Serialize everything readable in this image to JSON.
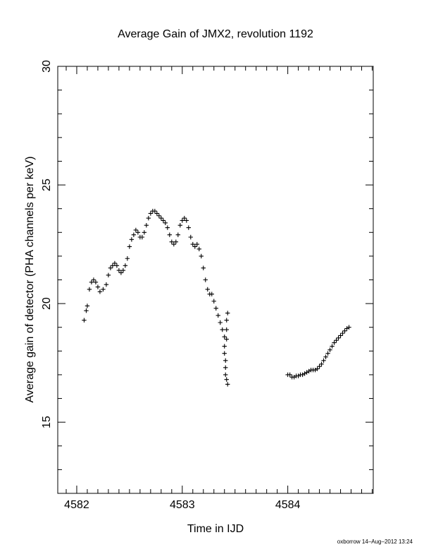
{
  "chart_data": {
    "type": "scatter",
    "title": "Average Gain of JMX2, revolution 1192",
    "xlabel": "Time in IJD",
    "ylabel": "Average gain of detector (PHA channels per keV)",
    "xlim": [
      4581.82,
      4584.81
    ],
    "ylim": [
      12,
      30
    ],
    "x_ticks": [
      4582,
      4583,
      4584
    ],
    "y_ticks": [
      15,
      20,
      25,
      30
    ],
    "grid": false,
    "marker": "plus",
    "footer": "oxborrow 14–Aug–2012 13:24",
    "series": [
      {
        "x": [
          4582.07,
          4582.09,
          4582.1,
          4582.12,
          4582.14,
          4582.16,
          4582.18,
          4582.2,
          4582.22,
          4582.25,
          4582.28,
          4582.3,
          4582.32,
          4582.34,
          4582.36,
          4582.38,
          4582.4,
          4582.42,
          4582.44,
          4582.46,
          4582.48,
          4582.5,
          4582.52,
          4582.54,
          4582.56,
          4582.58,
          4582.6,
          4582.62,
          4582.64,
          4582.66,
          4582.68,
          4582.7,
          4582.72,
          4582.74,
          4582.76,
          4582.78,
          4582.8,
          4582.82,
          4582.84,
          4582.86,
          4582.88,
          4582.9,
          4582.92,
          4582.94,
          4582.96,
          4582.98,
          4583.0,
          4583.02,
          4583.04,
          4583.06,
          4583.08,
          4583.1,
          4583.12,
          4583.14,
          4583.16,
          4583.18,
          4583.2,
          4583.22,
          4583.24,
          4583.26,
          4583.28,
          4583.3,
          4583.32,
          4583.34,
          4583.36,
          4583.38,
          4583.4
        ],
        "y": [
          19.3,
          19.7,
          19.9,
          20.6,
          20.9,
          21.0,
          20.9,
          20.7,
          20.5,
          20.6,
          20.8,
          21.2,
          21.5,
          21.6,
          21.7,
          21.6,
          21.4,
          21.3,
          21.4,
          21.6,
          21.9,
          22.4,
          22.7,
          22.9,
          23.1,
          23.0,
          22.8,
          22.8,
          23.0,
          23.3,
          23.6,
          23.8,
          23.9,
          23.9,
          23.8,
          23.7,
          23.6,
          23.5,
          23.4,
          23.2,
          22.9,
          22.6,
          22.5,
          22.6,
          22.9,
          23.3,
          23.5,
          23.6,
          23.5,
          23.2,
          22.8,
          22.5,
          22.4,
          22.5,
          22.3,
          22.0,
          21.5,
          21.0,
          20.6,
          20.4,
          20.4,
          20.1,
          19.8,
          19.5,
          19.2,
          18.9,
          18.6
        ]
      },
      {
        "x": [
          4583.4,
          4583.4,
          4583.41,
          4583.41,
          4583.41,
          4583.42,
          4583.42,
          4583.42,
          4583.42,
          4583.43,
          4583.43
        ],
        "y": [
          18.2,
          17.9,
          17.6,
          17.3,
          17.0,
          16.8,
          18.9,
          18.5,
          19.3,
          19.6,
          16.6
        ]
      },
      {
        "x": [
          4584.0,
          4584.02,
          4584.04,
          4584.06,
          4584.08,
          4584.1,
          4584.12,
          4584.14,
          4584.16,
          4584.18,
          4584.2,
          4584.22,
          4584.24,
          4584.26,
          4584.28,
          4584.3,
          4584.32,
          4584.34,
          4584.36,
          4584.38,
          4584.4,
          4584.42,
          4584.44,
          4584.46,
          4584.48,
          4584.5,
          4584.52,
          4584.54,
          4584.56,
          4584.58
        ],
        "y": [
          17.0,
          17.0,
          16.9,
          16.9,
          16.95,
          16.95,
          17.0,
          17.0,
          17.05,
          17.1,
          17.15,
          17.2,
          17.2,
          17.2,
          17.25,
          17.35,
          17.45,
          17.6,
          17.75,
          17.9,
          18.05,
          18.2,
          18.35,
          18.45,
          18.55,
          18.65,
          18.75,
          18.85,
          18.95,
          19.0
        ]
      }
    ]
  }
}
